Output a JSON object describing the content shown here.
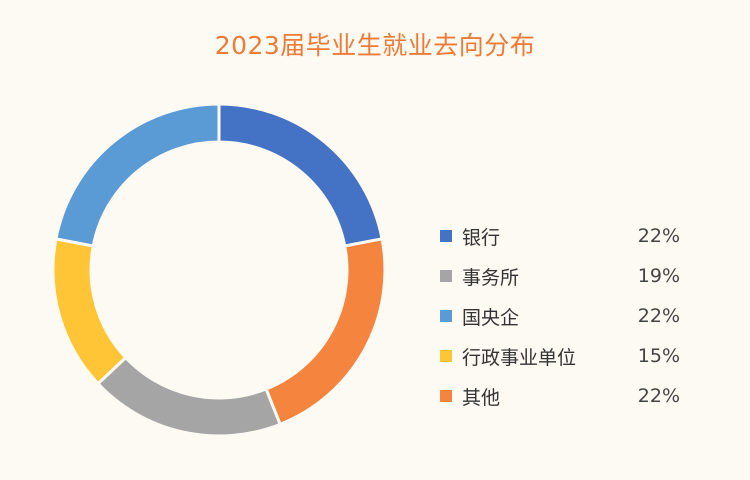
{
  "chart_data": {
    "type": "pie",
    "title": "2023届毕业生就业去向分布",
    "categories": [
      "银行",
      "事务所",
      "国央企",
      "行政事业单位",
      "其他"
    ],
    "values": [
      22,
      19,
      22,
      15,
      22
    ],
    "value_labels": [
      "22%",
      "19%",
      "22%",
      "15%",
      "22%"
    ],
    "unit": "%",
    "colors": [
      "#4472c4",
      "#a5a5a5",
      "#5b9bd5",
      "#ffc537",
      "#f5843f"
    ],
    "slice_order_clockwise_from_top": [
      "银行",
      "其他",
      "事务所",
      "行政事业单位",
      "国央企"
    ],
    "style": "donut",
    "legend_position": "right"
  }
}
